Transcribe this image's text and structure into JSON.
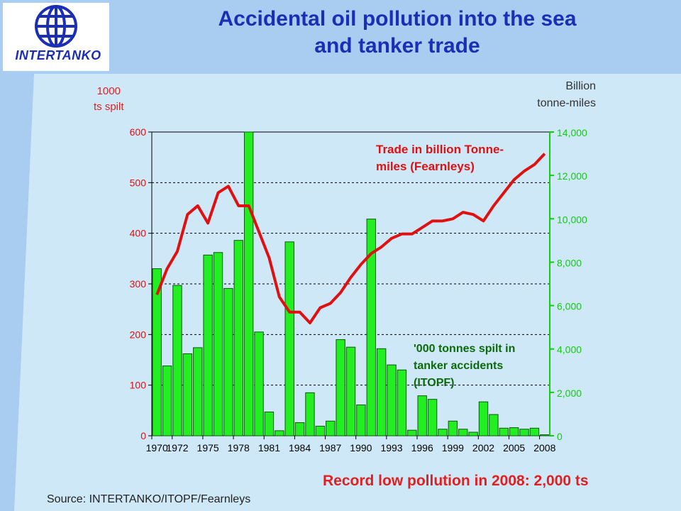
{
  "title": {
    "line1": "Accidental oil pollution into the sea",
    "line2": "and tanker trade"
  },
  "logo": {
    "text": "INTERTANKO"
  },
  "left_axis_units": {
    "line1": "1000",
    "line2": "ts spilt"
  },
  "right_axis_units": {
    "line1": "Billion",
    "line2": "tonne-miles"
  },
  "conclusion": "Record low pollution in 2008: 2,000 ts",
  "source": "Source: INTERTANKO/ITOPF/Fearnleys",
  "colors": {
    "bar": "#22ee22",
    "bar_stroke": "#0a5a0a",
    "line": "#e01010",
    "trade_label": "#e01010",
    "spill_label": "#0a6a0a",
    "left_axis": "#e01010",
    "right_axis": "#11cc11",
    "title": "#1a2fb5"
  },
  "chart_data": {
    "type": "bar",
    "categories": [
      "1970",
      "1971",
      "1972",
      "1973",
      "1974",
      "1975",
      "1976",
      "1977",
      "1978",
      "1979",
      "1980",
      "1981",
      "1982",
      "1983",
      "1984",
      "1985",
      "1986",
      "1987",
      "1988",
      "1989",
      "1990",
      "1991",
      "1992",
      "1993",
      "1994",
      "1995",
      "1996",
      "1997",
      "1998",
      "1999",
      "2000",
      "2001",
      "2002",
      "2003",
      "2004",
      "2005",
      "2006",
      "2007",
      "2008"
    ],
    "x_tick_labels": [
      "1970",
      "1972",
      "1975",
      "1978",
      "1981",
      "1984",
      "1987",
      "1990",
      "1993",
      "1996",
      "1999",
      "2002",
      "2005",
      "2008"
    ],
    "left_axis": {
      "ylim": [
        0,
        600
      ],
      "ticks": [
        "0",
        "100",
        "200",
        "300",
        "400",
        "500",
        "600"
      ]
    },
    "right_axis": {
      "ylim": [
        0,
        14000
      ],
      "ticks": [
        "0",
        "2,000",
        "4,000",
        "6,000",
        "8,000",
        "10,000",
        "12,000",
        "14,000"
      ]
    },
    "grid": true,
    "series": [
      {
        "name": "'000 tonnes spilt in tanker accidents (ITOPF)",
        "name_lines": [
          "'000 tonnes spilt in",
          "tanker accidents",
          "(ITOPF)"
        ],
        "type": "bar",
        "axis": "left",
        "values": [
          330,
          138,
          297,
          162,
          174,
          357,
          362,
          291,
          386,
          600,
          205,
          47,
          10,
          383,
          26,
          85,
          19,
          29,
          190,
          175,
          61,
          428,
          172,
          140,
          130,
          11,
          79,
          72,
          13,
          29,
          13,
          7,
          67,
          42,
          15,
          16,
          13,
          15,
          2
        ]
      },
      {
        "name": "Trade in billion Tonne-miles (Fearnleys)",
        "name_lines": [
          "Trade in billion Tonne-",
          "miles (Fearnleys)"
        ],
        "type": "line",
        "axis": "right",
        "values": [
          6500,
          7700,
          8500,
          10200,
          10600,
          9800,
          11200,
          11500,
          10600,
          10600,
          9400,
          8200,
          6400,
          5700,
          5700,
          5200,
          5900,
          6100,
          6600,
          7300,
          7900,
          8400,
          8700,
          9100,
          9300,
          9300,
          9600,
          9900,
          9900,
          10000,
          10300,
          10200,
          9900,
          10600,
          11200,
          11800,
          12200,
          12500,
          13000
        ]
      }
    ]
  }
}
